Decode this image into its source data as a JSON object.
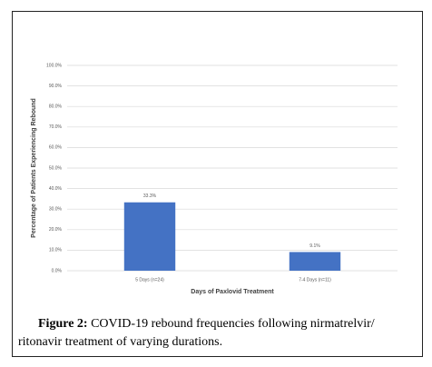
{
  "chart_data": {
    "type": "bar",
    "categories": [
      "5 Days (n=24)",
      "7-4 Days (n=11)"
    ],
    "values": [
      33.3,
      9.1
    ],
    "value_labels": [
      "33.3%",
      "9.1%"
    ],
    "color": "#4472c4",
    "xlabel": "Days of Paxlovid Treatment",
    "ylabel": "Percentage of Patients Experiencing Rebound",
    "ylim": [
      0,
      100
    ],
    "yticks": [
      {
        "value": 0,
        "label": "0.0%"
      },
      {
        "value": 10,
        "label": "10.0%"
      },
      {
        "value": 20,
        "label": "20.0%"
      },
      {
        "value": 30,
        "label": "30.0%"
      },
      {
        "value": 40,
        "label": "40.0%"
      },
      {
        "value": 50,
        "label": "50.0%"
      },
      {
        "value": 60,
        "label": "60.0%"
      },
      {
        "value": 70,
        "label": "70.0%"
      },
      {
        "value": 80,
        "label": "80.0%"
      },
      {
        "value": 90,
        "label": "90.0%"
      },
      {
        "value": 100,
        "label": "100.0%"
      }
    ],
    "grid": true
  },
  "caption": {
    "label": "Figure 2:",
    "lines": [
      "COVID-19 rebound frequencies following nirmatrelvir/",
      "ritonavir treatment of varying durations."
    ]
  }
}
